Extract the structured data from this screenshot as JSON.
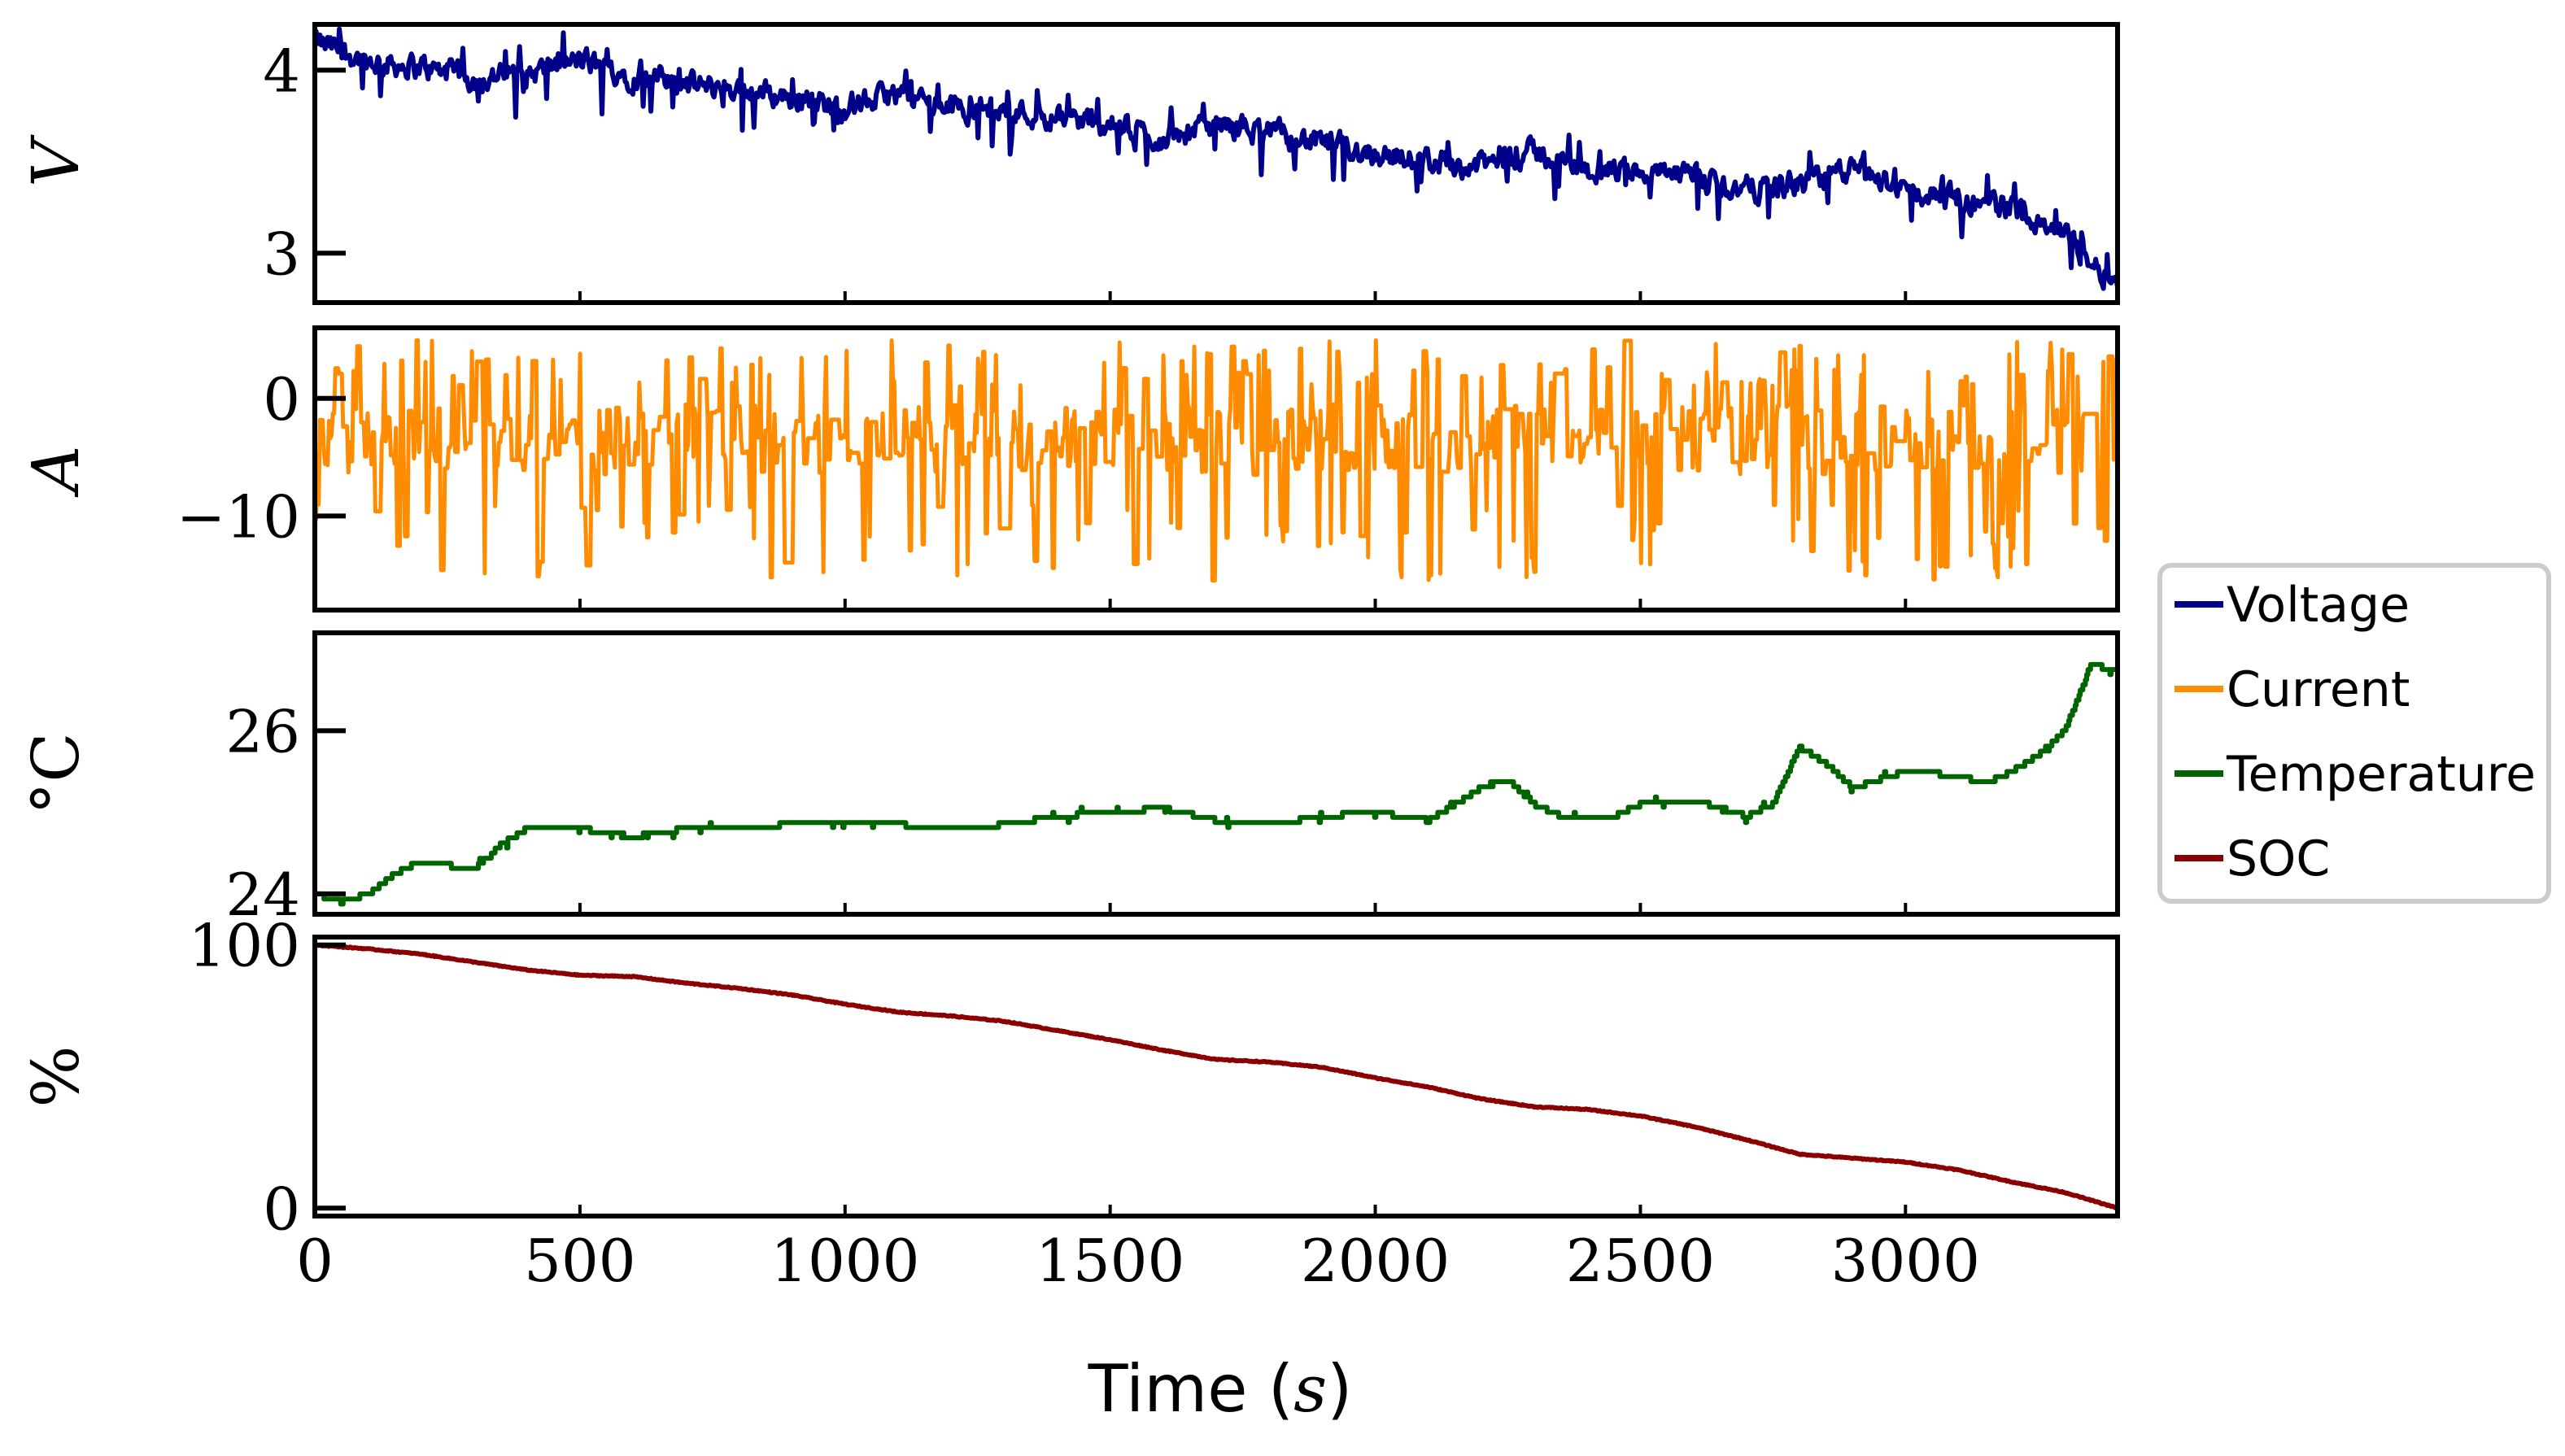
{
  "chart_data": {
    "type": "line",
    "xlabel": "Time (s)",
    "xlim": [
      0,
      3400
    ],
    "xticks": [
      0,
      500,
      1000,
      1500,
      2000,
      2500,
      3000
    ],
    "xtick_labels": [
      "0",
      "500",
      "1000",
      "1500",
      "2000",
      "2500",
      "3000"
    ],
    "legend": {
      "placement": "right",
      "entries": [
        {
          "label": "Voltage",
          "color": "#00008b"
        },
        {
          "label": "Current",
          "color": "#ff8c00"
        },
        {
          "label": "Temperature",
          "color": "#006400"
        },
        {
          "label": "SOC",
          "color": "#8b0000"
        }
      ]
    },
    "panels": [
      {
        "name": "voltage",
        "series_name": "Voltage",
        "ylabel": "V",
        "color": "#00008b",
        "ylim": [
          2.73,
          4.25
        ],
        "yticks": [
          3,
          4
        ],
        "ytick_labels": [
          "3",
          "4"
        ],
        "x": [
          0,
          50,
          100,
          200,
          300,
          400,
          500,
          600,
          700,
          800,
          900,
          1000,
          1100,
          1200,
          1300,
          1400,
          1500,
          1600,
          1700,
          1800,
          1900,
          2000,
          2100,
          2200,
          2300,
          2400,
          2500,
          2600,
          2700,
          2800,
          2900,
          3000,
          3100,
          3200,
          3250,
          3300,
          3350,
          3400
        ],
        "values": [
          4.15,
          4.1,
          4.05,
          4.02,
          3.95,
          3.98,
          4.05,
          3.97,
          3.92,
          3.9,
          3.85,
          3.8,
          3.87,
          3.8,
          3.78,
          3.75,
          3.7,
          3.62,
          3.7,
          3.66,
          3.6,
          3.55,
          3.5,
          3.48,
          3.55,
          3.45,
          3.45,
          3.4,
          3.35,
          3.38,
          3.45,
          3.35,
          3.28,
          3.25,
          3.2,
          3.1,
          2.95,
          2.85
        ],
        "noise": 0.05
      },
      {
        "name": "current",
        "series_name": "Current",
        "ylabel": "A",
        "color": "#ff8c00",
        "ylim": [
          -18,
          6
        ],
        "yticks": [
          0,
          -10
        ],
        "ytick_labels": [
          "0",
          "−10"
        ],
        "x": [
          0,
          3400
        ],
        "values": [
          -3.5,
          -3.5
        ],
        "range": [
          -16.5,
          5
        ]
      },
      {
        "name": "temperature",
        "series_name": "Temperature",
        "ylabel": "°C",
        "color": "#006400",
        "ylim": [
          23.75,
          27.2
        ],
        "yticks": [
          24,
          26
        ],
        "ytick_labels": [
          "24",
          "26"
        ],
        "x": [
          0,
          50,
          100,
          150,
          200,
          300,
          350,
          400,
          500,
          600,
          700,
          900,
          1000,
          1200,
          1300,
          1400,
          1600,
          1700,
          1800,
          1900,
          2000,
          2100,
          2200,
          2250,
          2300,
          2350,
          2450,
          2500,
          2600,
          2700,
          2750,
          2800,
          2850,
          2900,
          3000,
          3100,
          3150,
          3200,
          3250,
          3300,
          3350,
          3400
        ],
        "values": [
          24.0,
          23.9,
          24.0,
          24.25,
          24.4,
          24.3,
          24.6,
          24.8,
          24.8,
          24.7,
          24.8,
          24.85,
          24.9,
          24.8,
          24.85,
          24.95,
          25.05,
          24.9,
          24.85,
          24.95,
          25.0,
          24.9,
          25.3,
          25.4,
          25.1,
          24.95,
          24.95,
          25.1,
          25.15,
          24.95,
          25.1,
          25.8,
          25.6,
          25.3,
          25.5,
          25.45,
          25.35,
          25.5,
          25.7,
          26.0,
          26.8,
          26.75
        ]
      },
      {
        "name": "soc",
        "series_name": "SOC",
        "ylabel": "%",
        "color": "#8b0000",
        "ylim": [
          -3,
          103
        ],
        "yticks": [
          0,
          100
        ],
        "ytick_labels": [
          "0",
          "100"
        ],
        "x": [
          0,
          100,
          200,
          300,
          400,
          500,
          600,
          700,
          800,
          900,
          1000,
          1100,
          1200,
          1300,
          1400,
          1500,
          1600,
          1700,
          1800,
          1900,
          2000,
          2100,
          2200,
          2300,
          2400,
          2500,
          2600,
          2700,
          2800,
          2900,
          3000,
          3100,
          3200,
          3300,
          3400
        ],
        "values": [
          100,
          98.5,
          96.5,
          93.5,
          90.5,
          88.5,
          88,
          85.5,
          83.5,
          81,
          77.5,
          74.5,
          73,
          71,
          67.5,
          64,
          60,
          56.5,
          55.5,
          53.5,
          49.5,
          46,
          41.5,
          38.5,
          37.5,
          35,
          31,
          26,
          20.5,
          19,
          17.5,
          14.5,
          10,
          6,
          0
        ]
      }
    ]
  }
}
